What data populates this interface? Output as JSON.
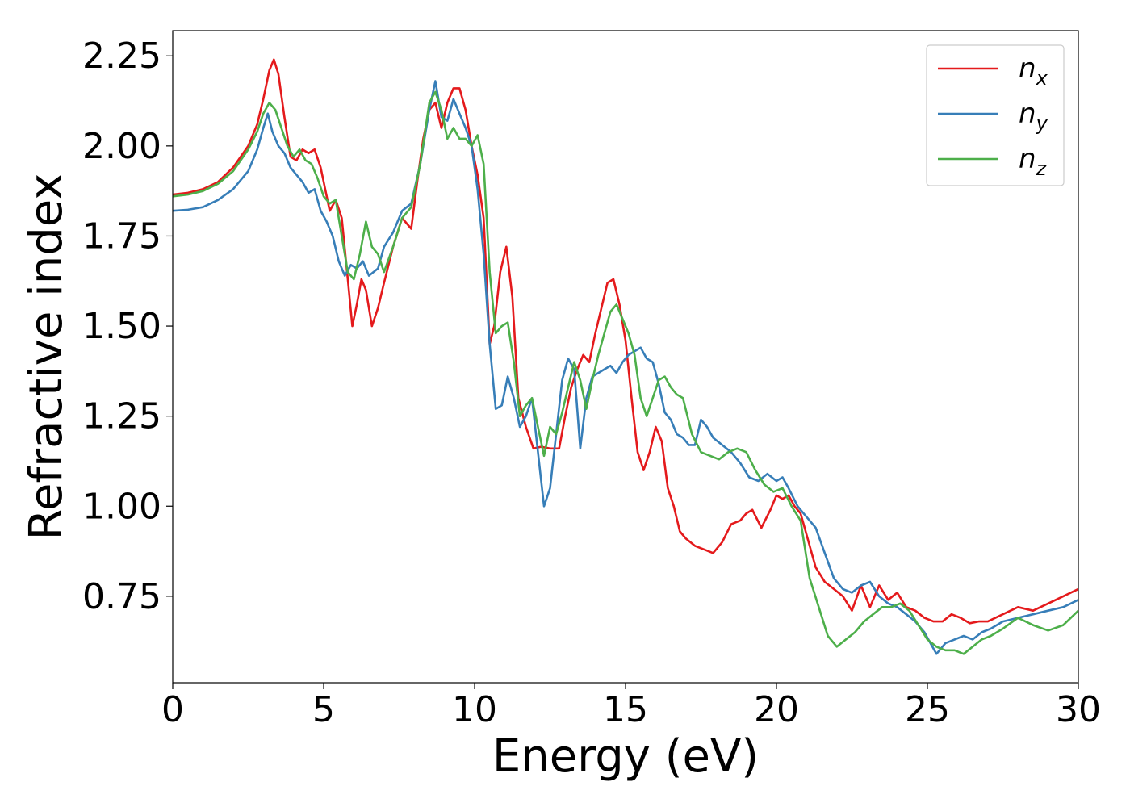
{
  "chart_data": {
    "type": "line",
    "xlabel": "Energy (eV)",
    "ylabel": "Refractive index",
    "xlim": [
      0,
      30
    ],
    "ylim": [
      0.51,
      2.32
    ],
    "xticks": [
      0,
      5,
      10,
      15,
      20,
      25,
      30
    ],
    "xtick_labels": [
      "0",
      "5",
      "10",
      "15",
      "20",
      "25",
      "30"
    ],
    "yticks": [
      0.75,
      1.0,
      1.25,
      1.5,
      1.75,
      2.0,
      2.25
    ],
    "ytick_labels": [
      "0.75",
      "1.00",
      "1.25",
      "1.50",
      "1.75",
      "2.00",
      "2.25"
    ],
    "grid": false,
    "legend_position": "top-right",
    "series": [
      {
        "name": "n_x",
        "legend_base": "n",
        "legend_sub": "x",
        "color": "#e41a1c",
        "x": [
          0,
          0.5,
          1,
          1.5,
          2,
          2.5,
          2.8,
          3.0,
          3.2,
          3.35,
          3.5,
          3.7,
          3.9,
          4.1,
          4.3,
          4.5,
          4.7,
          4.9,
          5.05,
          5.2,
          5.4,
          5.6,
          5.8,
          5.95,
          6.1,
          6.25,
          6.4,
          6.6,
          6.8,
          7.0,
          7.3,
          7.6,
          7.9,
          8.1,
          8.3,
          8.5,
          8.7,
          8.9,
          9.1,
          9.3,
          9.5,
          9.7,
          9.9,
          10.1,
          10.3,
          10.5,
          10.65,
          10.85,
          11.05,
          11.25,
          11.45,
          11.7,
          11.95,
          12.2,
          12.5,
          12.8,
          13.0,
          13.2,
          13.4,
          13.6,
          13.8,
          14.0,
          14.2,
          14.4,
          14.6,
          14.8,
          15.0,
          15.2,
          15.4,
          15.6,
          15.8,
          16.0,
          16.2,
          16.4,
          16.6,
          16.8,
          17.0,
          17.3,
          17.6,
          17.9,
          18.2,
          18.5,
          18.8,
          19.0,
          19.2,
          19.5,
          19.8,
          20.0,
          20.2,
          20.4,
          20.6,
          20.8,
          21.0,
          21.3,
          21.6,
          21.9,
          22.2,
          22.5,
          22.8,
          23.1,
          23.4,
          23.7,
          24.0,
          24.3,
          24.6,
          24.9,
          25.2,
          25.5,
          25.8,
          26.1,
          26.4,
          26.7,
          27.0,
          27.5,
          28.0,
          28.5,
          29.0,
          29.5,
          30.0
        ],
        "y": [
          1.865,
          1.87,
          1.88,
          1.9,
          1.94,
          2.0,
          2.06,
          2.13,
          2.21,
          2.24,
          2.2,
          2.08,
          1.97,
          1.96,
          1.99,
          1.98,
          1.99,
          1.94,
          1.88,
          1.82,
          1.85,
          1.8,
          1.63,
          1.5,
          1.56,
          1.63,
          1.6,
          1.5,
          1.55,
          1.62,
          1.72,
          1.8,
          1.77,
          1.9,
          2.02,
          2.1,
          2.12,
          2.05,
          2.12,
          2.16,
          2.16,
          2.1,
          2.0,
          1.92,
          1.8,
          1.45,
          1.5,
          1.65,
          1.72,
          1.58,
          1.3,
          1.22,
          1.16,
          1.165,
          1.16,
          1.16,
          1.25,
          1.33,
          1.38,
          1.42,
          1.4,
          1.48,
          1.55,
          1.62,
          1.63,
          1.56,
          1.46,
          1.3,
          1.15,
          1.1,
          1.15,
          1.22,
          1.18,
          1.05,
          1.0,
          0.93,
          0.91,
          0.89,
          0.88,
          0.87,
          0.9,
          0.95,
          0.96,
          0.98,
          0.99,
          0.94,
          0.99,
          1.03,
          1.02,
          1.03,
          1.0,
          0.98,
          0.92,
          0.83,
          0.79,
          0.77,
          0.75,
          0.71,
          0.78,
          0.72,
          0.78,
          0.74,
          0.76,
          0.72,
          0.71,
          0.69,
          0.68,
          0.68,
          0.7,
          0.69,
          0.675,
          0.68,
          0.68,
          0.7,
          0.72,
          0.71,
          0.73,
          0.75,
          0.77
        ]
      },
      {
        "name": "n_y",
        "legend_base": "n",
        "legend_sub": "y",
        "color": "#377eb8",
        "x": [
          0,
          0.5,
          1,
          1.5,
          2,
          2.5,
          2.8,
          3.0,
          3.15,
          3.3,
          3.5,
          3.7,
          3.9,
          4.1,
          4.3,
          4.5,
          4.7,
          4.9,
          5.1,
          5.3,
          5.5,
          5.7,
          5.9,
          6.1,
          6.3,
          6.5,
          6.8,
          7.0,
          7.3,
          7.6,
          7.9,
          8.2,
          8.5,
          8.7,
          8.9,
          9.1,
          9.3,
          9.5,
          9.7,
          9.9,
          10.1,
          10.3,
          10.5,
          10.7,
          10.9,
          11.1,
          11.3,
          11.5,
          11.7,
          11.9,
          12.1,
          12.3,
          12.5,
          12.7,
          12.9,
          13.1,
          13.3,
          13.5,
          13.7,
          13.9,
          14.1,
          14.3,
          14.5,
          14.7,
          14.9,
          15.1,
          15.3,
          15.5,
          15.7,
          15.9,
          16.1,
          16.3,
          16.5,
          16.7,
          16.9,
          17.1,
          17.3,
          17.5,
          17.7,
          17.9,
          18.2,
          18.5,
          18.8,
          19.1,
          19.4,
          19.7,
          20.0,
          20.2,
          20.4,
          20.7,
          21.0,
          21.3,
          21.6,
          21.9,
          22.2,
          22.5,
          22.8,
          23.1,
          23.4,
          23.7,
          24.0,
          24.3,
          24.6,
          24.9,
          25.1,
          25.3,
          25.6,
          25.9,
          26.2,
          26.5,
          26.8,
          27.1,
          27.5,
          28.0,
          28.5,
          29.0,
          29.5,
          30.0
        ],
        "y": [
          1.82,
          1.823,
          1.83,
          1.85,
          1.88,
          1.93,
          1.99,
          2.05,
          2.09,
          2.04,
          2.0,
          1.98,
          1.94,
          1.92,
          1.9,
          1.87,
          1.88,
          1.82,
          1.79,
          1.75,
          1.68,
          1.64,
          1.67,
          1.66,
          1.68,
          1.64,
          1.66,
          1.72,
          1.76,
          1.82,
          1.84,
          1.95,
          2.1,
          2.18,
          2.08,
          2.07,
          2.13,
          2.09,
          2.05,
          2.0,
          1.88,
          1.7,
          1.45,
          1.27,
          1.28,
          1.36,
          1.3,
          1.22,
          1.25,
          1.3,
          1.15,
          1.0,
          1.05,
          1.2,
          1.35,
          1.41,
          1.38,
          1.16,
          1.3,
          1.36,
          1.37,
          1.38,
          1.39,
          1.37,
          1.4,
          1.42,
          1.43,
          1.44,
          1.41,
          1.4,
          1.34,
          1.26,
          1.24,
          1.2,
          1.19,
          1.17,
          1.17,
          1.24,
          1.22,
          1.19,
          1.17,
          1.15,
          1.12,
          1.08,
          1.07,
          1.09,
          1.07,
          1.08,
          1.05,
          1.0,
          0.97,
          0.94,
          0.87,
          0.8,
          0.77,
          0.76,
          0.78,
          0.79,
          0.75,
          0.73,
          0.72,
          0.7,
          0.68,
          0.65,
          0.62,
          0.59,
          0.62,
          0.63,
          0.64,
          0.63,
          0.65,
          0.66,
          0.68,
          0.69,
          0.7,
          0.71,
          0.72,
          0.74
        ]
      },
      {
        "name": "n_z",
        "legend_base": "n",
        "legend_sub": "z",
        "color": "#4daf4a",
        "x": [
          0,
          0.5,
          1,
          1.5,
          2,
          2.5,
          2.8,
          3.0,
          3.2,
          3.4,
          3.6,
          3.8,
          4.0,
          4.2,
          4.4,
          4.6,
          4.8,
          5.0,
          5.2,
          5.4,
          5.6,
          5.8,
          6.0,
          6.2,
          6.4,
          6.6,
          6.8,
          7.0,
          7.3,
          7.6,
          7.9,
          8.2,
          8.5,
          8.7,
          8.9,
          9.1,
          9.3,
          9.5,
          9.7,
          9.9,
          10.1,
          10.3,
          10.5,
          10.7,
          10.9,
          11.1,
          11.3,
          11.5,
          11.7,
          11.9,
          12.1,
          12.3,
          12.5,
          12.7,
          12.9,
          13.1,
          13.3,
          13.5,
          13.7,
          13.9,
          14.1,
          14.3,
          14.5,
          14.7,
          14.9,
          15.1,
          15.3,
          15.5,
          15.7,
          15.9,
          16.1,
          16.3,
          16.5,
          16.7,
          16.9,
          17.2,
          17.5,
          17.8,
          18.1,
          18.4,
          18.7,
          19.0,
          19.3,
          19.6,
          19.9,
          20.2,
          20.5,
          20.8,
          21.1,
          21.4,
          21.7,
          22.0,
          22.3,
          22.6,
          22.9,
          23.2,
          23.5,
          23.8,
          24.1,
          24.4,
          24.7,
          25.0,
          25.3,
          25.6,
          25.9,
          26.2,
          26.5,
          26.8,
          27.1,
          27.5,
          28.0,
          28.5,
          29.0,
          29.5,
          30.0
        ],
        "y": [
          1.86,
          1.865,
          1.875,
          1.895,
          1.93,
          1.99,
          2.04,
          2.09,
          2.12,
          2.1,
          2.05,
          2.0,
          1.97,
          1.99,
          1.96,
          1.95,
          1.91,
          1.86,
          1.84,
          1.85,
          1.75,
          1.65,
          1.63,
          1.7,
          1.79,
          1.72,
          1.7,
          1.65,
          1.72,
          1.8,
          1.83,
          1.95,
          2.12,
          2.15,
          2.1,
          2.02,
          2.05,
          2.02,
          2.02,
          2.0,
          2.03,
          1.95,
          1.65,
          1.48,
          1.5,
          1.51,
          1.4,
          1.25,
          1.28,
          1.3,
          1.22,
          1.14,
          1.22,
          1.2,
          1.26,
          1.33,
          1.4,
          1.35,
          1.27,
          1.35,
          1.42,
          1.48,
          1.54,
          1.56,
          1.52,
          1.48,
          1.42,
          1.3,
          1.25,
          1.3,
          1.35,
          1.36,
          1.33,
          1.31,
          1.3,
          1.2,
          1.15,
          1.14,
          1.13,
          1.15,
          1.16,
          1.15,
          1.1,
          1.06,
          1.04,
          1.05,
          1.0,
          0.96,
          0.8,
          0.72,
          0.64,
          0.61,
          0.63,
          0.65,
          0.68,
          0.7,
          0.72,
          0.72,
          0.73,
          0.71,
          0.67,
          0.63,
          0.61,
          0.6,
          0.6,
          0.59,
          0.61,
          0.63,
          0.64,
          0.66,
          0.69,
          0.67,
          0.655,
          0.67,
          0.71
        ]
      }
    ]
  }
}
